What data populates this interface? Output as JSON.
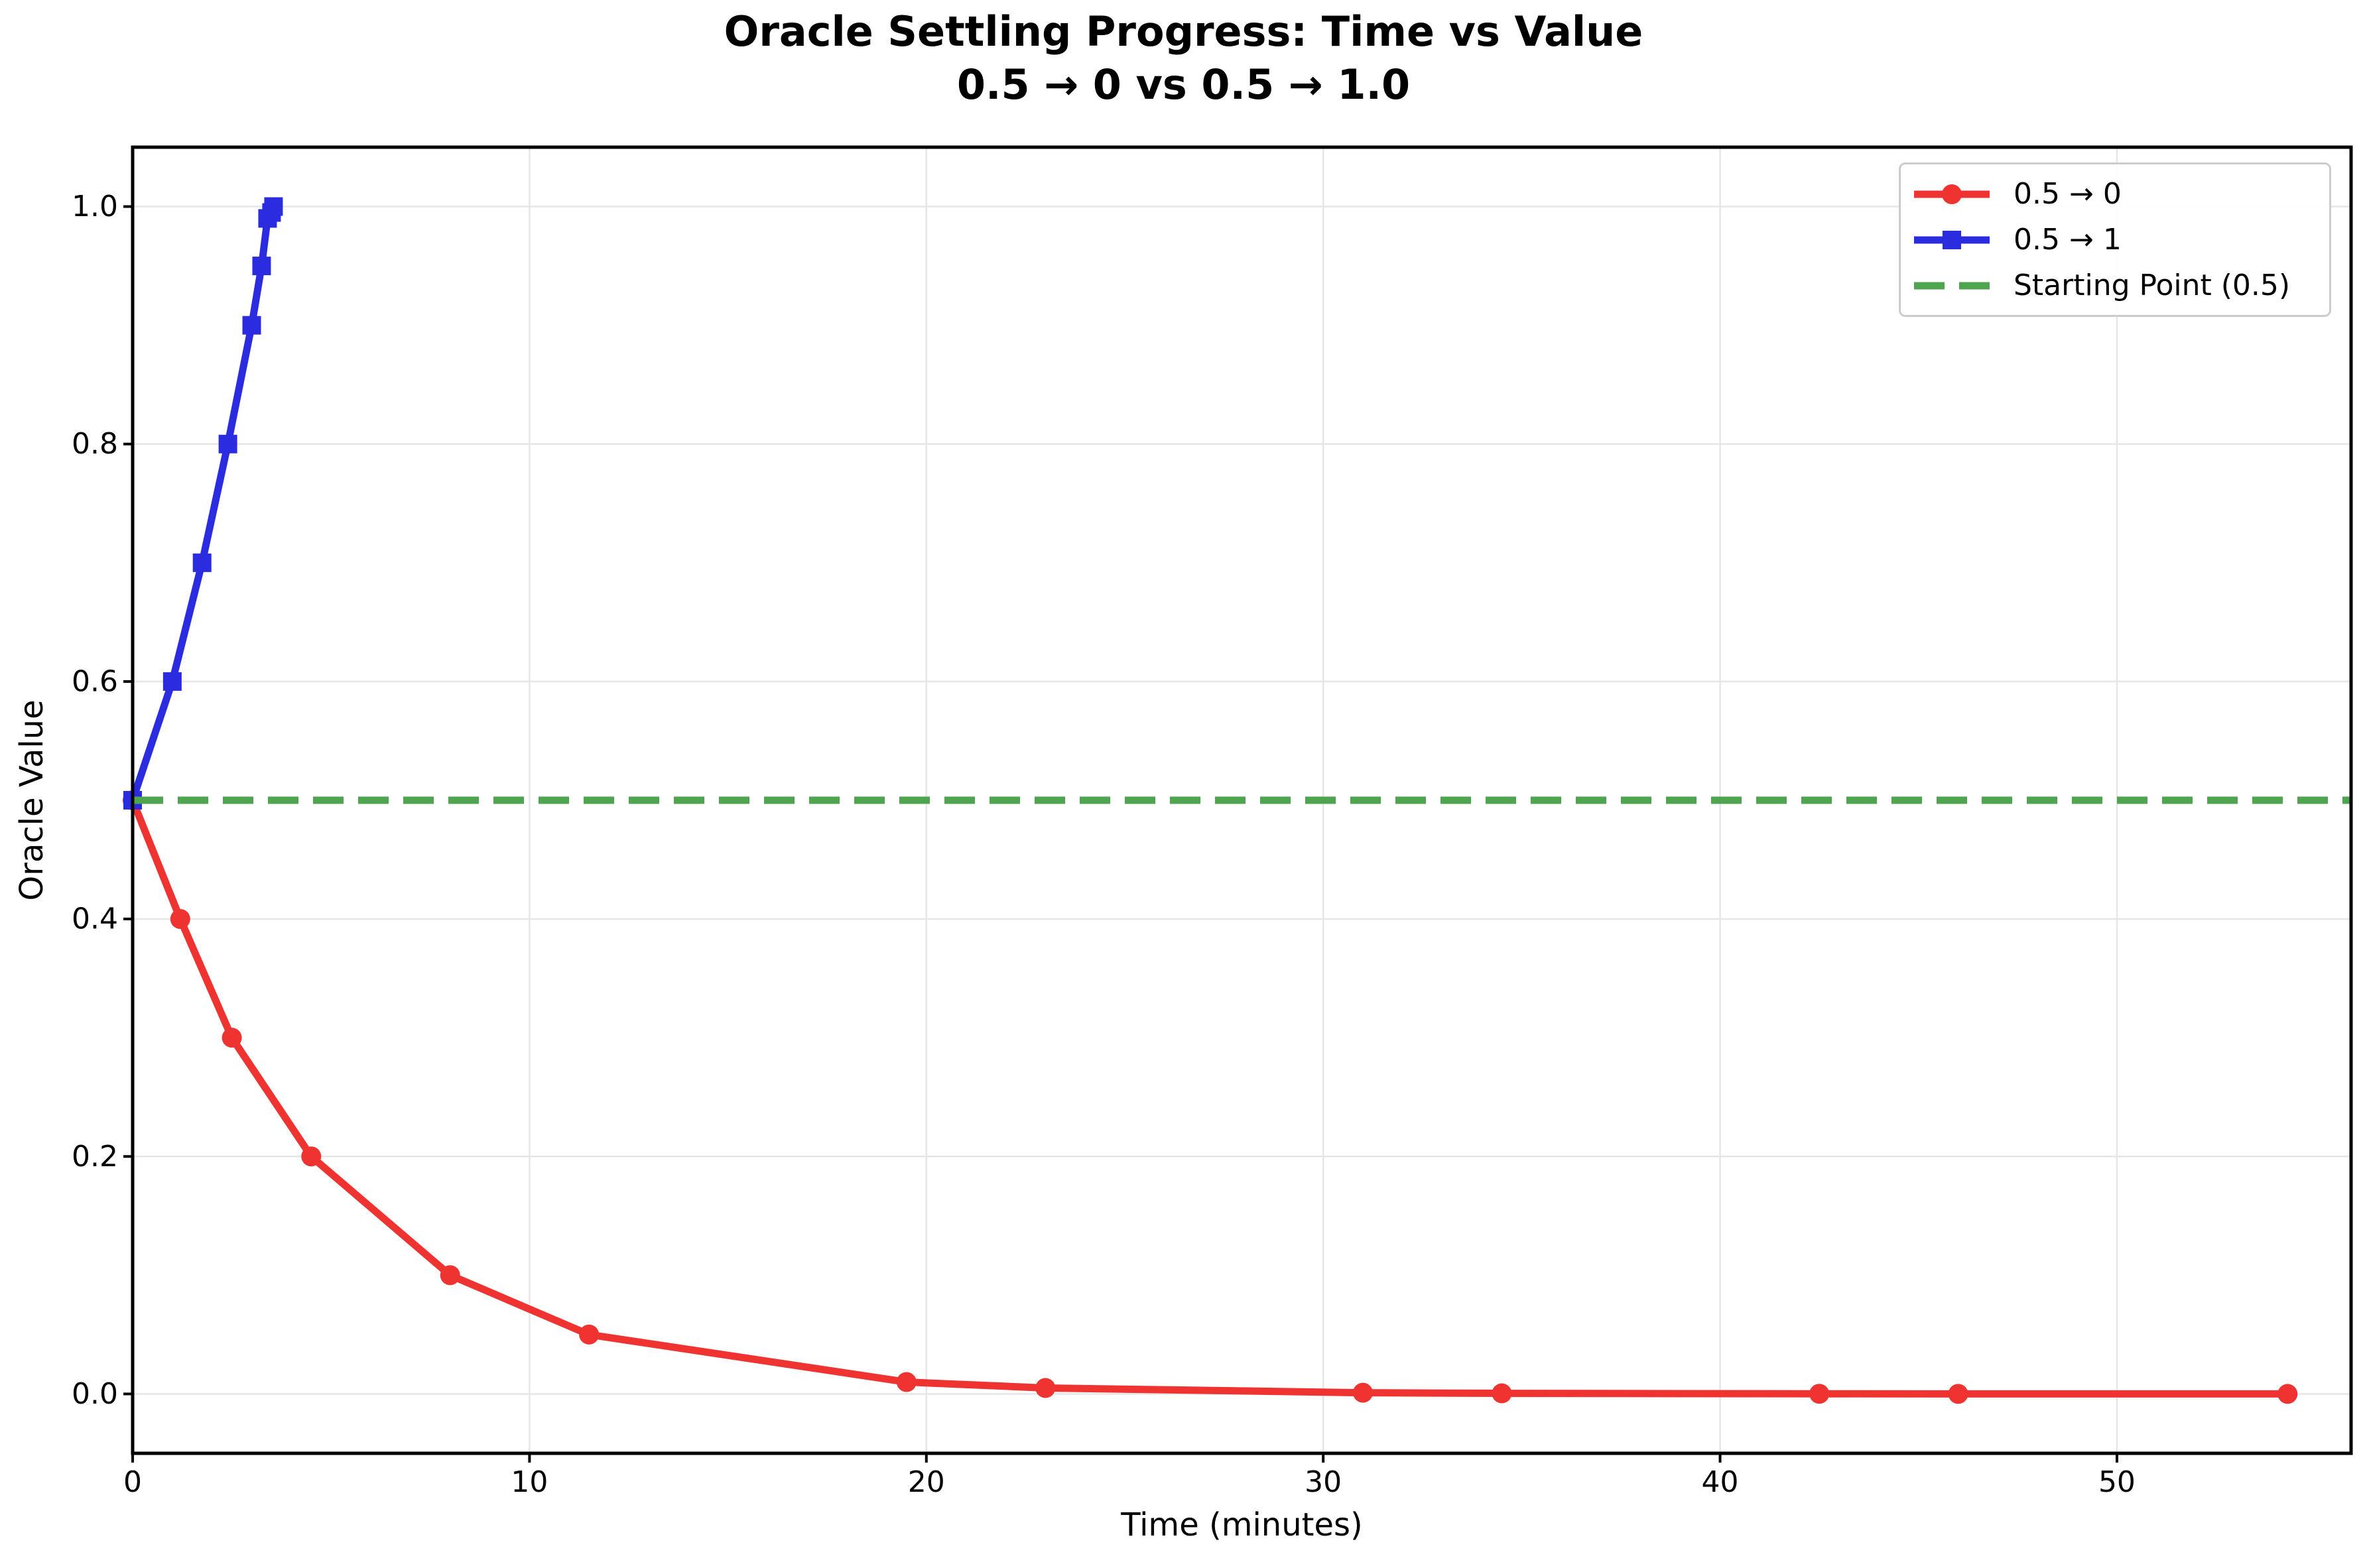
{
  "figure": {
    "title": "Oracle Settling Progress: Time vs Value",
    "subtitle": "0.5 → 0 vs 0.5 → 1.0"
  },
  "chart_data": {
    "type": "line",
    "title": "Oracle Settling Progress: Time vs Value",
    "subtitle": "0.5 → 0 vs 0.5 → 1.0",
    "xlabel": "Time (minutes)",
    "ylabel": "Oracle Value",
    "xlim": [
      0,
      55.9
    ],
    "ylim": [
      -0.05,
      1.05
    ],
    "x_ticks": [
      0,
      10,
      20,
      30,
      40,
      50
    ],
    "x_tick_labels": [
      "0",
      "10",
      "20",
      "30",
      "40",
      "50"
    ],
    "y_ticks": [
      0.0,
      0.2,
      0.4,
      0.6,
      0.8,
      1.0
    ],
    "y_tick_labels": [
      "0.0",
      "0.2",
      "0.4",
      "0.6",
      "0.8",
      "1.0"
    ],
    "grid": true,
    "grid_color": "#e6e6e6",
    "legend_position": "upper right",
    "series": [
      {
        "name": "0.5 → 0",
        "color": "#ee3330",
        "marker": "circle",
        "x": [
          0,
          1.2,
          2.5,
          4.5,
          8,
          11.5,
          19.5,
          23,
          31,
          34.5,
          42.5,
          46,
          54.3
        ],
        "y": [
          0.5,
          0.4,
          0.3,
          0.2,
          0.1,
          0.05,
          0.01,
          0.005,
          0.001,
          0.0005,
          0.0001,
          5e-05,
          1e-05
        ]
      },
      {
        "name": "0.5 → 1",
        "color": "#2b2bdf",
        "marker": "square",
        "x": [
          0,
          1.0,
          1.75,
          2.4,
          3.0,
          3.25,
          3.4,
          3.5,
          3.55
        ],
        "y": [
          0.5,
          0.6,
          0.7,
          0.8,
          0.9,
          0.95,
          0.99,
          0.995,
          1.0
        ]
      }
    ],
    "hline": {
      "label": "Starting Point (0.5)",
      "value": 0.5,
      "color": "#4fa44f",
      "style": "dashed"
    }
  }
}
